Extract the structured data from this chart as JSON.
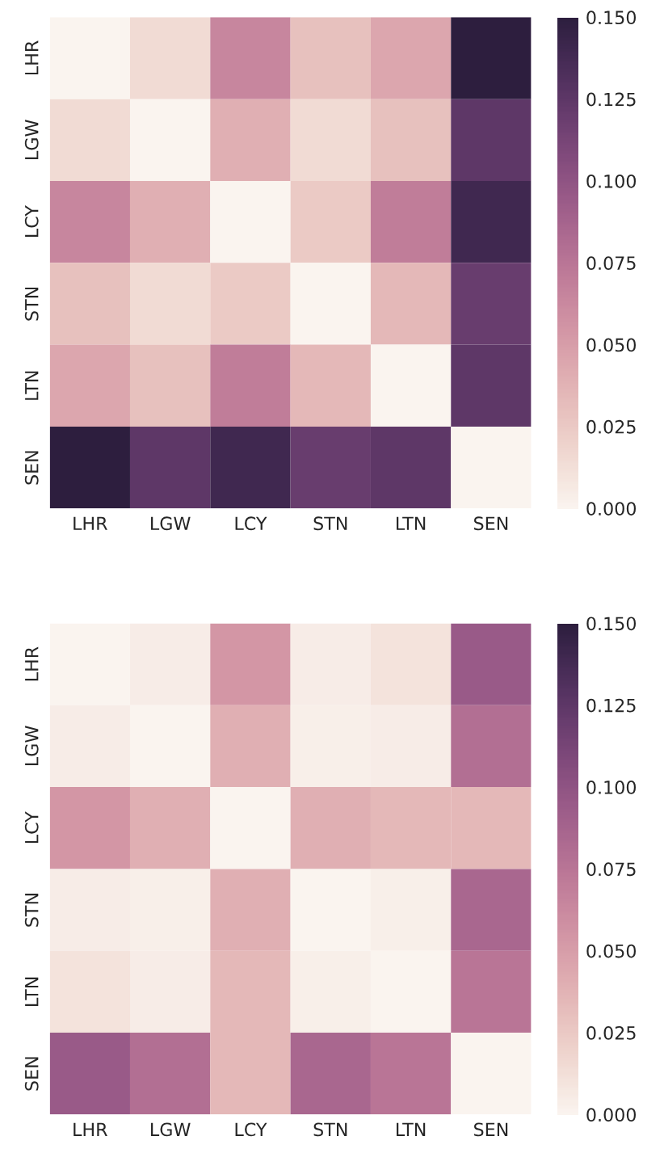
{
  "chart_data": [
    {
      "type": "heatmap",
      "categories": [
        "LHR",
        "LGW",
        "LCY",
        "STN",
        "LTN",
        "SEN"
      ],
      "y_categories": [
        "LHR",
        "LGW",
        "LCY",
        "STN",
        "LTN",
        "SEN"
      ],
      "cells": [
        [
          0,
          0.015,
          0.065,
          0.03,
          0.045,
          0.15
        ],
        [
          0.015,
          0,
          0.04,
          0.015,
          0.03,
          0.125
        ],
        [
          0.065,
          0.04,
          0,
          0.025,
          0.07,
          0.14
        ],
        [
          0.03,
          0.015,
          0.025,
          0,
          0.035,
          0.12
        ],
        [
          0.045,
          0.03,
          0.07,
          0.035,
          0,
          0.125
        ],
        [
          0.15,
          0.125,
          0.14,
          0.12,
          0.125,
          0
        ]
      ],
      "clim": [
        0,
        0.15
      ],
      "cticks": [
        {
          "value": 0,
          "label": "0.000"
        },
        {
          "value": 0.025,
          "label": "0.025"
        },
        {
          "value": 0.05,
          "label": "0.050"
        },
        {
          "value": 0.075,
          "label": "0.075"
        },
        {
          "value": 0.1,
          "label": "0.100"
        },
        {
          "value": 0.125,
          "label": "0.125"
        },
        {
          "value": 0.15,
          "label": "0.150"
        }
      ]
    },
    {
      "type": "heatmap",
      "categories": [
        "LHR",
        "LGW",
        "LCY",
        "STN",
        "LTN",
        "SEN"
      ],
      "y_categories": [
        "LHR",
        "LGW",
        "LCY",
        "STN",
        "LTN",
        "SEN"
      ],
      "cells": [
        [
          0,
          0.005,
          0.055,
          0.005,
          0.01,
          0.095
        ],
        [
          0.005,
          0,
          0.04,
          0.003,
          0.005,
          0.08
        ],
        [
          0.055,
          0.04,
          0,
          0.04,
          0.035,
          0.035
        ],
        [
          0.005,
          0.003,
          0.04,
          0,
          0.003,
          0.085
        ],
        [
          0.01,
          0.005,
          0.035,
          0.003,
          0,
          0.075
        ],
        [
          0.095,
          0.08,
          0.035,
          0.085,
          0.075,
          0
        ]
      ],
      "clim": [
        0,
        0.15
      ],
      "cticks": [
        {
          "value": 0,
          "label": "0.000"
        },
        {
          "value": 0.025,
          "label": "0.025"
        },
        {
          "value": 0.05,
          "label": "0.050"
        },
        {
          "value": 0.075,
          "label": "0.075"
        },
        {
          "value": 0.1,
          "label": "0.100"
        },
        {
          "value": 0.125,
          "label": "0.125"
        },
        {
          "value": 0.15,
          "label": "0.150"
        }
      ]
    }
  ]
}
